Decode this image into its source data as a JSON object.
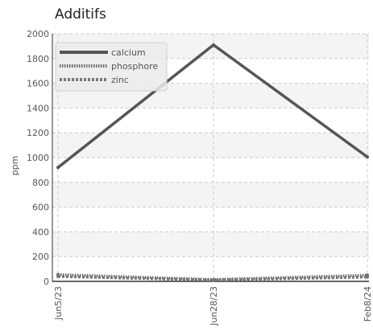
{
  "chart_data": {
    "type": "line",
    "title": "Additifs",
    "xlabel": "",
    "ylabel": "ppm",
    "categories": [
      "Jun5/23",
      "Jun28/23",
      "Feb8/24"
    ],
    "ylim": [
      0,
      2000
    ],
    "yticks": [
      0,
      200,
      400,
      600,
      800,
      1000,
      1200,
      1400,
      1600,
      1800,
      2000
    ],
    "grid": true,
    "legend_position": "top-left",
    "series": [
      {
        "name": "calcium",
        "values": [
          920,
          1910,
          1005
        ],
        "color": "#555555",
        "style": "solid"
      },
      {
        "name": "phosphore",
        "values": [
          55,
          15,
          50
        ],
        "color": "#666666",
        "style": "dotted"
      },
      {
        "name": "zinc",
        "values": [
          40,
          10,
          35
        ],
        "color": "#777777",
        "style": "dashed"
      }
    ]
  }
}
